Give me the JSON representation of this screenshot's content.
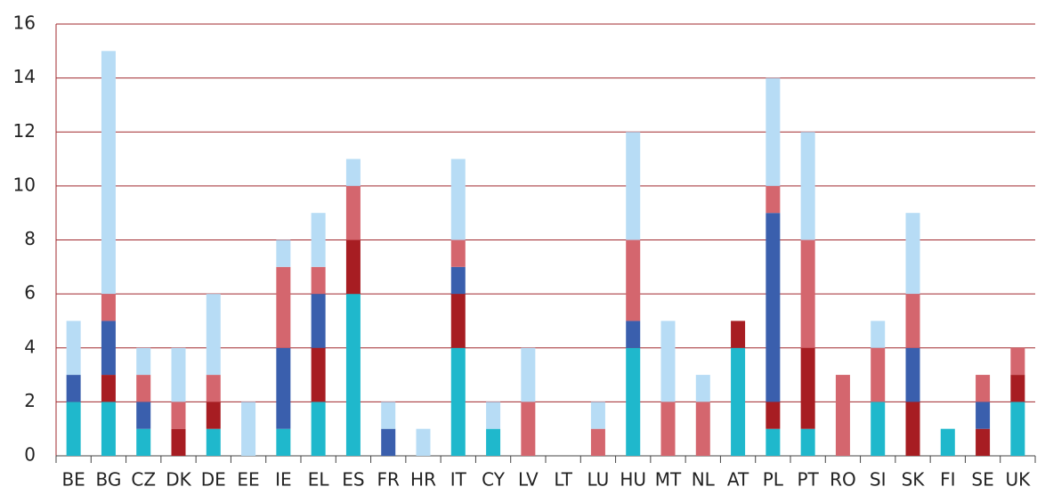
{
  "chart_data": {
    "type": "stacked_bar",
    "categories": [
      "BE",
      "BG",
      "CZ",
      "DK",
      "DE",
      "EE",
      "IE",
      "EL",
      "ES",
      "FR",
      "HR",
      "IT",
      "CY",
      "LV",
      "LT",
      "LU",
      "HU",
      "MT",
      "NL",
      "AT",
      "PL",
      "PT",
      "RO",
      "SI",
      "SK",
      "FI",
      "SE",
      "UK"
    ],
    "series": [
      {
        "color": "#1fb8cc",
        "values": [
          2,
          2,
          1,
          0,
          1,
          0,
          1,
          2,
          6,
          0,
          0,
          4,
          1,
          0,
          0,
          0,
          4,
          0,
          0,
          4,
          1,
          1,
          0,
          2,
          0,
          1,
          0,
          2
        ]
      },
      {
        "color": "#a71d22",
        "values": [
          0,
          1,
          0,
          1,
          1,
          0,
          0,
          2,
          2,
          0,
          0,
          2,
          0,
          0,
          0,
          0,
          0,
          0,
          0,
          1,
          1,
          3,
          0,
          0,
          2,
          0,
          1,
          1
        ]
      },
      {
        "color": "#3a5fad",
        "values": [
          1,
          2,
          1,
          0,
          0,
          0,
          3,
          2,
          0,
          1,
          0,
          1,
          0,
          0,
          0,
          0,
          1,
          0,
          0,
          0,
          7,
          0,
          0,
          0,
          2,
          0,
          1,
          0
        ]
      },
      {
        "color": "#d4666e",
        "values": [
          0,
          1,
          1,
          1,
          1,
          0,
          3,
          1,
          2,
          0,
          0,
          1,
          0,
          2,
          0,
          1,
          3,
          2,
          2,
          0,
          1,
          4,
          3,
          2,
          2,
          0,
          1,
          1
        ]
      },
      {
        "color": "#b7dcf5",
        "values": [
          2,
          9,
          1,
          2,
          3,
          2,
          1,
          2,
          1,
          1,
          1,
          3,
          1,
          2,
          0,
          1,
          4,
          3,
          1,
          0,
          4,
          4,
          0,
          1,
          3,
          0,
          0,
          0
        ]
      }
    ],
    "ylim": [
      0,
      16
    ],
    "yticks": [
      0,
      2,
      4,
      6,
      8,
      10,
      12,
      14,
      16
    ],
    "grid": true
  }
}
